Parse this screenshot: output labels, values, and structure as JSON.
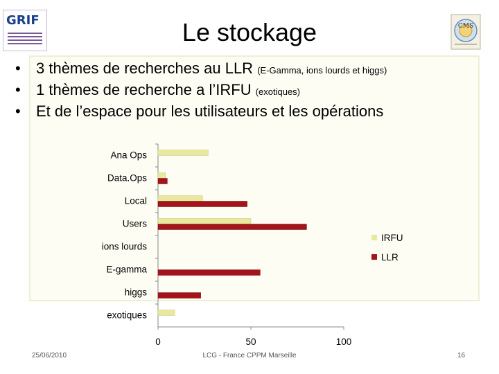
{
  "slide": {
    "title": "Le stockage",
    "logo_left_text": "GRIF",
    "logo_right_text": "CMS",
    "bullets": [
      {
        "main": "3 thèmes de recherches au LLR ",
        "note": "(E-Gamma, ions lourds et higgs)"
      },
      {
        "main": "1 thèmes de recherche  a l’IRFU ",
        "note": "(exotiques)"
      },
      {
        "main": "Et de l’espace pour les utilisateurs  et les  opérations",
        "note": ""
      }
    ],
    "bullet_char": "•",
    "footer": {
      "date": "25/06/2010",
      "center": "LCG - France CPPM Marseille",
      "page": "16"
    }
  },
  "chart_data": {
    "type": "bar",
    "orientation": "horizontal",
    "categories": [
      "Ana Ops",
      "Data.Ops",
      "Local",
      "Users",
      "ions lourds",
      "E-gamma",
      "higgs",
      "exotiques"
    ],
    "series": [
      {
        "name": "IRFU",
        "color": "#e8e8a0",
        "values": [
          27,
          4,
          24,
          50,
          0,
          0,
          0,
          9
        ]
      },
      {
        "name": "LLR",
        "color": "#a3151a",
        "values": [
          0,
          5,
          48,
          80,
          0,
          55,
          23,
          0
        ]
      }
    ],
    "xlim": [
      0,
      100
    ],
    "x_ticks": [
      0,
      50,
      100
    ],
    "grid": false,
    "legend_position": "right"
  }
}
